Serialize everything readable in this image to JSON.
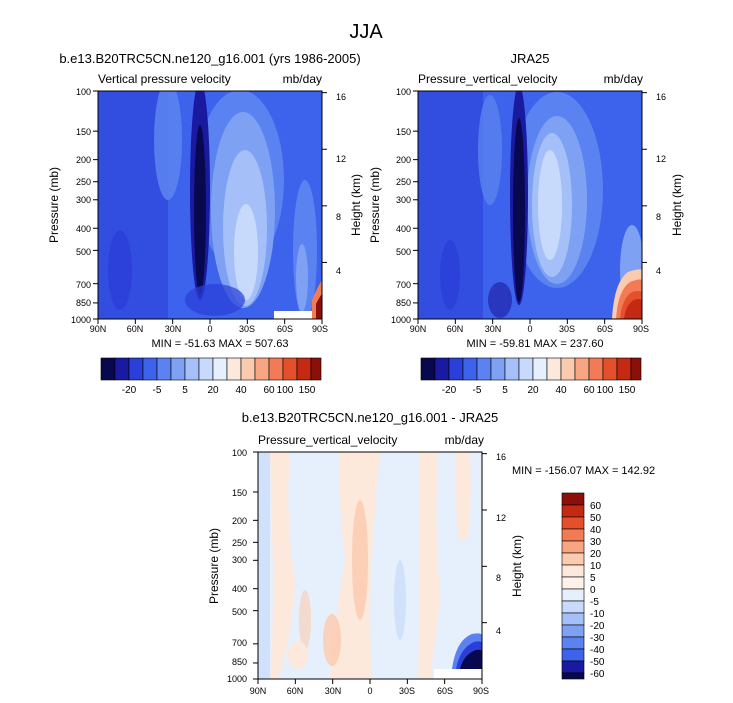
{
  "figure": {
    "title": "JJA"
  },
  "chart_data": [
    {
      "type": "heatmap",
      "id": "model",
      "title": "b.e13.B20TRC5CN.ne120_g16.001 (yrs 1986-2005)",
      "left_label": "Vertical pressure velocity",
      "right_label": "mb/day",
      "xlabel": "",
      "ylabel": "Pressure (mb)",
      "y2label": "Height (km)",
      "x_ticks": [
        "90N",
        "60N",
        "30N",
        "0",
        "30S",
        "60S",
        "90S"
      ],
      "y_ticks": [
        "100",
        "150",
        "200",
        "250",
        "300",
        "400",
        "500",
        "700",
        "850",
        "1000"
      ],
      "y_tick_values": [
        100,
        150,
        200,
        250,
        300,
        400,
        500,
        700,
        850,
        1000
      ],
      "y2_ticks": [
        "16",
        "12",
        "8",
        "4"
      ],
      "stats": "MIN = -51.63  MAX = 507.63",
      "ylim": [
        100,
        1000
      ],
      "colorbar_labels": [
        "-20",
        "-5",
        "5",
        "20",
        "40",
        "60",
        "100",
        "150"
      ]
    },
    {
      "type": "heatmap",
      "id": "obs",
      "title": "JRA25",
      "left_label": "Pressure_vertical_velocity",
      "right_label": "mb/day",
      "xlabel": "",
      "ylabel": "Pressure (mb)",
      "y2label": "Height (km)",
      "x_ticks": [
        "90N",
        "60N",
        "30N",
        "0",
        "30S",
        "60S",
        "90S"
      ],
      "y_ticks": [
        "100",
        "150",
        "200",
        "250",
        "300",
        "400",
        "500",
        "700",
        "850",
        "1000"
      ],
      "y_tick_values": [
        100,
        150,
        200,
        250,
        300,
        400,
        500,
        700,
        850,
        1000
      ],
      "y2_ticks": [
        "16",
        "12",
        "8",
        "4"
      ],
      "stats": "MIN = -59.81  MAX = 237.60",
      "ylim": [
        100,
        1000
      ],
      "colorbar_labels": [
        "-20",
        "-5",
        "5",
        "20",
        "40",
        "60",
        "100",
        "150"
      ]
    },
    {
      "type": "heatmap",
      "id": "diff",
      "title": "b.e13.B20TRC5CN.ne120_g16.001 - JRA25",
      "left_label": "Pressure_vertical_velocity",
      "right_label": "mb/day",
      "xlabel": "",
      "ylabel": "Pressure (mb)",
      "y2label": "Height (km)",
      "x_ticks": [
        "90N",
        "60N",
        "30N",
        "0",
        "30S",
        "60S",
        "90S"
      ],
      "y_ticks": [
        "100",
        "150",
        "200",
        "250",
        "300",
        "400",
        "500",
        "700",
        "850",
        "1000"
      ],
      "y_tick_values": [
        100,
        150,
        200,
        250,
        300,
        400,
        500,
        700,
        850,
        1000
      ],
      "y2_ticks": [
        "16",
        "12",
        "8",
        "4"
      ],
      "stats": "MIN = -156.07  MAX = 142.92",
      "ylim": [
        100,
        1000
      ],
      "colorbar_labels": [
        "60",
        "50",
        "40",
        "30",
        "20",
        "10",
        "5",
        "0",
        "-5",
        "-10",
        "-20",
        "-30",
        "-40",
        "-50",
        "-60"
      ]
    }
  ],
  "colors": {
    "field_scale": [
      "#08084f",
      "#1a1aa0",
      "#2a3ed8",
      "#3d63ec",
      "#5a82f0",
      "#7ea1f4",
      "#a5c0f8",
      "#c8dafb",
      "#e6f0fd",
      "#fde8dc",
      "#fbcbb0",
      "#f8a682",
      "#f27a55",
      "#e4502c",
      "#c42a12",
      "#8c0f08"
    ],
    "diff_scale": [
      "#8c0f08",
      "#c42a12",
      "#e4502c",
      "#f27a55",
      "#f8a682",
      "#fbcbb0",
      "#fde8dc",
      "#fef2ea",
      "#e6f0fd",
      "#c8dafb",
      "#a5c0f8",
      "#7ea1f4",
      "#5a82f0",
      "#3d63ec",
      "#1a1aa0",
      "#08084f"
    ]
  }
}
